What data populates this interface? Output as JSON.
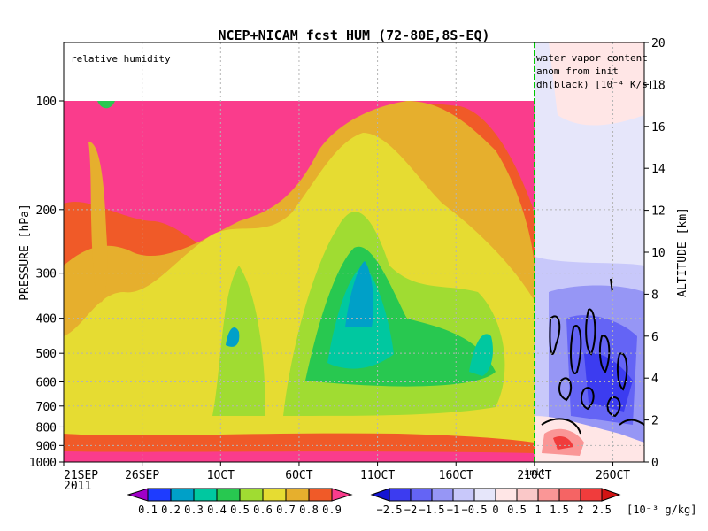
{
  "chart_data": {
    "type": "heatmap",
    "title": "NCEP+NICAM_fcst HUM (72-80E,8S-EQ)",
    "panel_label": "relative humidity",
    "annotation_lines": [
      "water vapor content",
      "anom from init",
      "dh(black) [10⁻⁴ K/s]"
    ],
    "ylabel_left": "PRESSURE [hPa]",
    "ylabel_right": "ALTITUDE [km]",
    "yticks_left": [
      "100",
      "200",
      "300",
      "400",
      "500",
      "600",
      "700",
      "800",
      "900",
      "1000"
    ],
    "yticks_right": [
      "0",
      "2",
      "4",
      "6",
      "8",
      "10",
      "12",
      "14",
      "16",
      "18",
      "20"
    ],
    "xticks": [
      "21SEP",
      "26SEP",
      "1OCT",
      "6OCT",
      "11OCT",
      "16OCT",
      "21OCT",
      "26OCT"
    ],
    "year_label": "2011",
    "init_label": "init",
    "ylim_pressure": [
      1000,
      100
    ],
    "ylim_altitude": [
      0,
      20
    ],
    "x_range": [
      "21SEP2011",
      "28OCT2011"
    ],
    "grid": true,
    "colorbar_rh": {
      "labels": [
        "0.1",
        "0.2",
        "0.3",
        "0.4",
        "0.5",
        "0.6",
        "0.7",
        "0.8",
        "0.9"
      ],
      "colors": [
        "#a000c8",
        "#1e3cff",
        "#00a0c8",
        "#00c8a0",
        "#28c850",
        "#a0dc32",
        "#e6dc32",
        "#e6af2d",
        "#f05a28",
        "#fa3c8c"
      ]
    },
    "colorbar_anom": {
      "labels": [
        "−2.5",
        "−2",
        "−1.5",
        "−1",
        "−0.5",
        "0",
        "0.5",
        "1",
        "1.5",
        "2",
        "2.5"
      ],
      "unit": "[10⁻³ g/kg]",
      "colors": [
        "#1414d2",
        "#3c3cf0",
        "#6464f5",
        "#9696f5",
        "#c8c8fa",
        "#e6e6fa",
        "#ffe6e6",
        "#fac8c8",
        "#fa9696",
        "#f56464",
        "#f03c3c",
        "#d21414"
      ]
    },
    "accent": {
      "init_line": "#00c800"
    }
  }
}
